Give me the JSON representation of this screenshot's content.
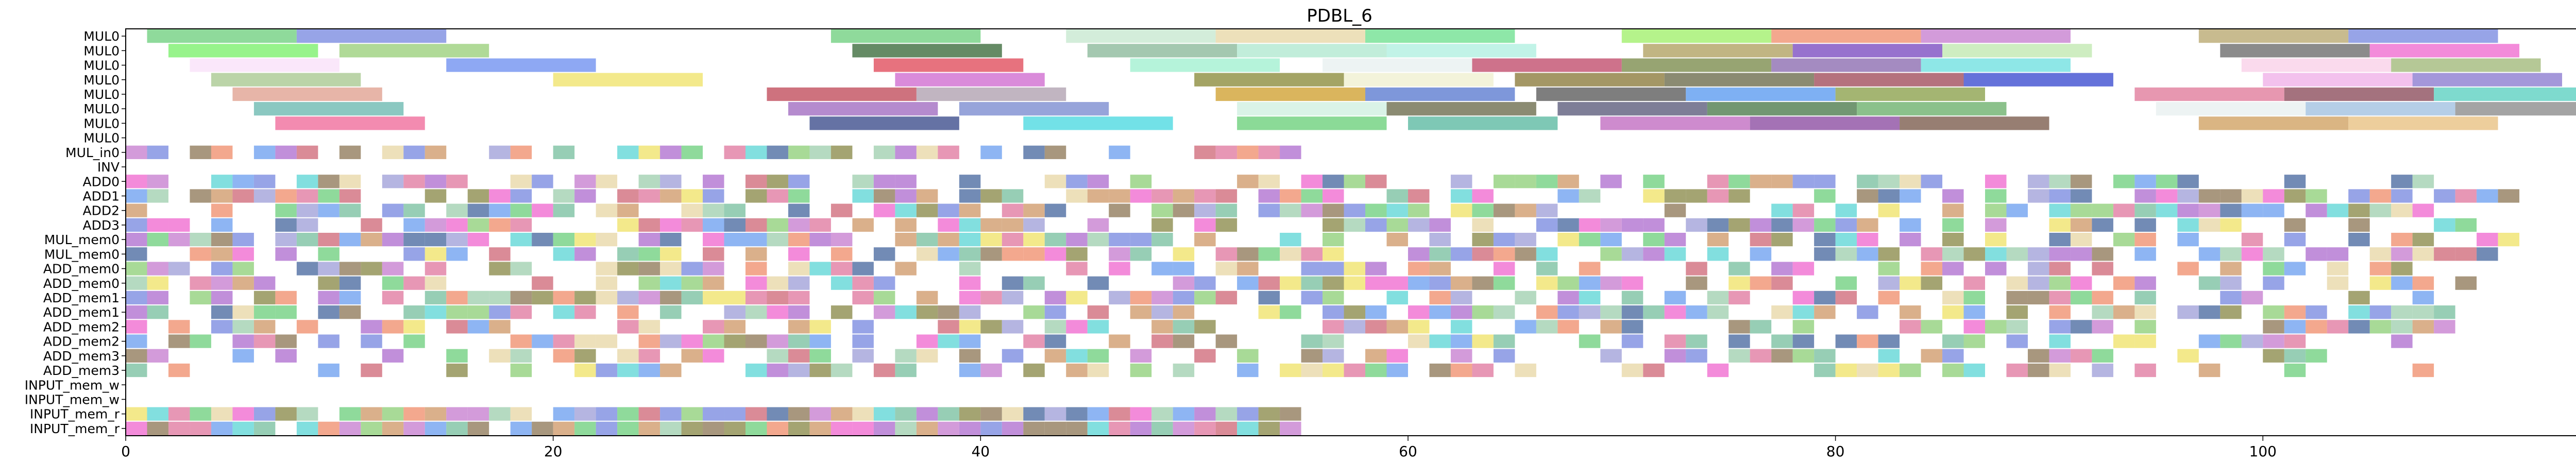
{
  "chart_data": {
    "type": "gantt",
    "title": "PDBL_6",
    "xlabel": "",
    "ylabel": "",
    "xlim": [
      0,
      116
    ],
    "x_ticks": [
      0,
      20,
      40,
      60,
      80,
      100
    ],
    "grid": false,
    "legend": "none",
    "rows": [
      "MUL0",
      "MUL0",
      "MUL0",
      "MUL0",
      "MUL0",
      "MUL0",
      "MUL0",
      "MUL0",
      "MUL_in0",
      "INV",
      "ADD0",
      "ADD1",
      "ADD2",
      "ADD3",
      "MUL_mem0",
      "MUL_mem0",
      "ADD_mem0",
      "ADD_mem0",
      "ADD_mem1",
      "ADD_mem1",
      "ADD_mem2",
      "ADD_mem2",
      "ADD_mem3",
      "ADD_mem3",
      "INPUT_mem_w",
      "INPUT_mem_w",
      "INPUT_mem_r",
      "INPUT_mem_r"
    ],
    "palette": [
      "#6fcf7f",
      "#7a8be0",
      "#e8d7a7",
      "#8fd07a",
      "#f0906e",
      "#c77fd0",
      "#8a8a4a",
      "#6ea0f0",
      "#f0e36a",
      "#d06a7a",
      "#a0d0b0",
      "#5fd6d6",
      "#b06fd0",
      "#e07aa0",
      "#8f7a5a",
      "#a0a0d8",
      "#f06ad0",
      "#7ac0a0",
      "#d09a6a",
      "#4a6aa0"
    ],
    "unit_bar_rows": [
      {
        "row": 8,
        "seed": 11,
        "density": 0.62,
        "max": 56
      },
      {
        "row": 10,
        "seed": 17,
        "density": 0.55,
        "max": 108
      },
      {
        "row": 11,
        "seed": 23,
        "density": 0.58,
        "max": 112
      },
      {
        "row": 12,
        "seed": 29,
        "density": 0.65,
        "max": 112
      },
      {
        "row": 13,
        "seed": 31,
        "density": 0.62,
        "max": 110
      },
      {
        "row": 14,
        "seed": 37,
        "density": 0.64,
        "max": 112
      },
      {
        "row": 15,
        "seed": 41,
        "density": 0.66,
        "max": 112
      },
      {
        "row": 16,
        "seed": 43,
        "density": 0.6,
        "max": 108
      },
      {
        "row": 17,
        "seed": 47,
        "density": 0.62,
        "max": 110
      },
      {
        "row": 18,
        "seed": 53,
        "density": 0.6,
        "max": 108
      },
      {
        "row": 19,
        "seed": 59,
        "density": 0.62,
        "max": 110
      },
      {
        "row": 20,
        "seed": 61,
        "density": 0.58,
        "max": 110
      },
      {
        "row": 21,
        "seed": 67,
        "density": 0.55,
        "max": 108
      },
      {
        "row": 22,
        "seed": 71,
        "density": 0.52,
        "max": 106
      },
      {
        "row": 23,
        "seed": 73,
        "density": 0.52,
        "max": 108
      },
      {
        "row": 26,
        "seed": 79,
        "density": 0.95,
        "max": 55
      },
      {
        "row": 27,
        "seed": 83,
        "density": 0.95,
        "max": 55
      }
    ],
    "segments": [
      {
        "row": 0,
        "start": 1,
        "end": 8,
        "color": "#6fcf7f"
      },
      {
        "row": 0,
        "start": 8,
        "end": 15,
        "color": "#7a8be0"
      },
      {
        "row": 0,
        "start": 33,
        "end": 40,
        "color": "#6fcf7f"
      },
      {
        "row": 0,
        "start": 44,
        "end": 51,
        "color": "#c7e8cf"
      },
      {
        "row": 0,
        "start": 51,
        "end": 58,
        "color": "#e8d7a7"
      },
      {
        "row": 0,
        "start": 58,
        "end": 65,
        "color": "#6ee08f"
      },
      {
        "row": 0,
        "start": 70,
        "end": 77,
        "color": "#a0f06a"
      },
      {
        "row": 0,
        "start": 77,
        "end": 84,
        "color": "#f0906e"
      },
      {
        "row": 0,
        "start": 84,
        "end": 91,
        "color": "#c77fd0"
      },
      {
        "row": 0,
        "start": 97,
        "end": 104,
        "color": "#b8a870"
      },
      {
        "row": 0,
        "start": 104,
        "end": 111,
        "color": "#7a8be0"
      },
      {
        "row": 1,
        "start": 2,
        "end": 9,
        "color": "#7af06a"
      },
      {
        "row": 1,
        "start": 10,
        "end": 17,
        "color": "#9ad07a"
      },
      {
        "row": 1,
        "start": 34,
        "end": 41,
        "color": "#3a6a3a"
      },
      {
        "row": 1,
        "start": 45,
        "end": 52,
        "color": "#8ab89a"
      },
      {
        "row": 1,
        "start": 52,
        "end": 59,
        "color": "#b0e8d0"
      },
      {
        "row": 1,
        "start": 59,
        "end": 66,
        "color": "#b0f0e0"
      },
      {
        "row": 1,
        "start": 71,
        "end": 78,
        "color": "#b0a060"
      },
      {
        "row": 1,
        "start": 78,
        "end": 85,
        "color": "#7a4ac0"
      },
      {
        "row": 1,
        "start": 85,
        "end": 92,
        "color": "#c0e8b0"
      },
      {
        "row": 1,
        "start": 98,
        "end": 105,
        "color": "#6a6a6a"
      },
      {
        "row": 1,
        "start": 105,
        "end": 112,
        "color": "#f06ad0"
      },
      {
        "row": 2,
        "start": 3,
        "end": 10,
        "color": "#f8e0f8"
      },
      {
        "row": 2,
        "start": 15,
        "end": 22,
        "color": "#6e90f0"
      },
      {
        "row": 2,
        "start": 35,
        "end": 42,
        "color": "#e04a5a"
      },
      {
        "row": 2,
        "start": 47,
        "end": 54,
        "color": "#a0f0d0"
      },
      {
        "row": 2,
        "start": 56,
        "end": 63,
        "color": "#e8f0f0"
      },
      {
        "row": 2,
        "start": 63,
        "end": 70,
        "color": "#c04a6a"
      },
      {
        "row": 2,
        "start": 70,
        "end": 77,
        "color": "#7a8a4a"
      },
      {
        "row": 2,
        "start": 77,
        "end": 84,
        "color": "#8a6ab0"
      },
      {
        "row": 2,
        "start": 84,
        "end": 91,
        "color": "#6ee0e0"
      },
      {
        "row": 2,
        "start": 99,
        "end": 106,
        "color": "#f8d0e8"
      },
      {
        "row": 2,
        "start": 106,
        "end": 113,
        "color": "#a0b878"
      },
      {
        "row": 3,
        "start": 4,
        "end": 11,
        "color": "#a8c890"
      },
      {
        "row": 3,
        "start": 20,
        "end": 27,
        "color": "#f0e36a"
      },
      {
        "row": 3,
        "start": 36,
        "end": 43,
        "color": "#d06ad0"
      },
      {
        "row": 3,
        "start": 50,
        "end": 57,
        "color": "#8a8a3a"
      },
      {
        "row": 3,
        "start": 57,
        "end": 64,
        "color": "#f0f0d0"
      },
      {
        "row": 3,
        "start": 65,
        "end": 72,
        "color": "#8a7a3a"
      },
      {
        "row": 3,
        "start": 72,
        "end": 79,
        "color": "#6a6a4a"
      },
      {
        "row": 3,
        "start": 79,
        "end": 86,
        "color": "#a04a5a"
      },
      {
        "row": 3,
        "start": 86,
        "end": 93,
        "color": "#3a4ad0"
      },
      {
        "row": 3,
        "start": 100,
        "end": 107,
        "color": "#f0b0e8"
      },
      {
        "row": 3,
        "start": 107,
        "end": 114,
        "color": "#8a7ad0"
      },
      {
        "row": 4,
        "start": 5,
        "end": 12,
        "color": "#e0a090"
      },
      {
        "row": 4,
        "start": 30,
        "end": 37,
        "color": "#c04a5a"
      },
      {
        "row": 4,
        "start": 37,
        "end": 44,
        "color": "#b0a0b0"
      },
      {
        "row": 4,
        "start": 51,
        "end": 58,
        "color": "#d0a030"
      },
      {
        "row": 4,
        "start": 58,
        "end": 65,
        "color": "#5a7ad0"
      },
      {
        "row": 4,
        "start": 66,
        "end": 73,
        "color": "#5a5a5a"
      },
      {
        "row": 4,
        "start": 73,
        "end": 80,
        "color": "#5a9af0"
      },
      {
        "row": 4,
        "start": 80,
        "end": 87,
        "color": "#8aa04a"
      },
      {
        "row": 4,
        "start": 94,
        "end": 101,
        "color": "#e07a9a"
      },
      {
        "row": 4,
        "start": 101,
        "end": 108,
        "color": "#8a4a5a"
      },
      {
        "row": 4,
        "start": 108,
        "end": 115,
        "color": "#5ad0c0"
      },
      {
        "row": 5,
        "start": 6,
        "end": 13,
        "color": "#6ab8b0"
      },
      {
        "row": 5,
        "start": 31,
        "end": 38,
        "color": "#a06ac0"
      },
      {
        "row": 5,
        "start": 39,
        "end": 46,
        "color": "#7a8ad0"
      },
      {
        "row": 5,
        "start": 52,
        "end": 59,
        "color": "#d0f0e0"
      },
      {
        "row": 5,
        "start": 59,
        "end": 66,
        "color": "#6a6a4a"
      },
      {
        "row": 5,
        "start": 67,
        "end": 74,
        "color": "#5a5a7a"
      },
      {
        "row": 5,
        "start": 74,
        "end": 81,
        "color": "#4a7a4a"
      },
      {
        "row": 5,
        "start": 81,
        "end": 88,
        "color": "#6ab06a"
      },
      {
        "row": 5,
        "start": 95,
        "end": 102,
        "color": "#e8f0f0"
      },
      {
        "row": 5,
        "start": 102,
        "end": 109,
        "color": "#a0c0e0"
      },
      {
        "row": 5,
        "start": 109,
        "end": 116,
        "color": "#8a8a8a"
      },
      {
        "row": 6,
        "start": 7,
        "end": 14,
        "color": "#f06a9a"
      },
      {
        "row": 6,
        "start": 32,
        "end": 39,
        "color": "#3a4a8a"
      },
      {
        "row": 6,
        "start": 42,
        "end": 49,
        "color": "#4ad8e0"
      },
      {
        "row": 6,
        "start": 52,
        "end": 59,
        "color": "#6ad07a"
      },
      {
        "row": 6,
        "start": 60,
        "end": 67,
        "color": "#5ab8a0"
      },
      {
        "row": 6,
        "start": 69,
        "end": 76,
        "color": "#c06ac0"
      },
      {
        "row": 6,
        "start": 76,
        "end": 83,
        "color": "#8a4aa0"
      },
      {
        "row": 6,
        "start": 83,
        "end": 90,
        "color": "#7a5a4a"
      },
      {
        "row": 6,
        "start": 97,
        "end": 104,
        "color": "#d0a060"
      },
      {
        "row": 6,
        "start": 104,
        "end": 111,
        "color": "#e8c080"
      }
    ]
  }
}
